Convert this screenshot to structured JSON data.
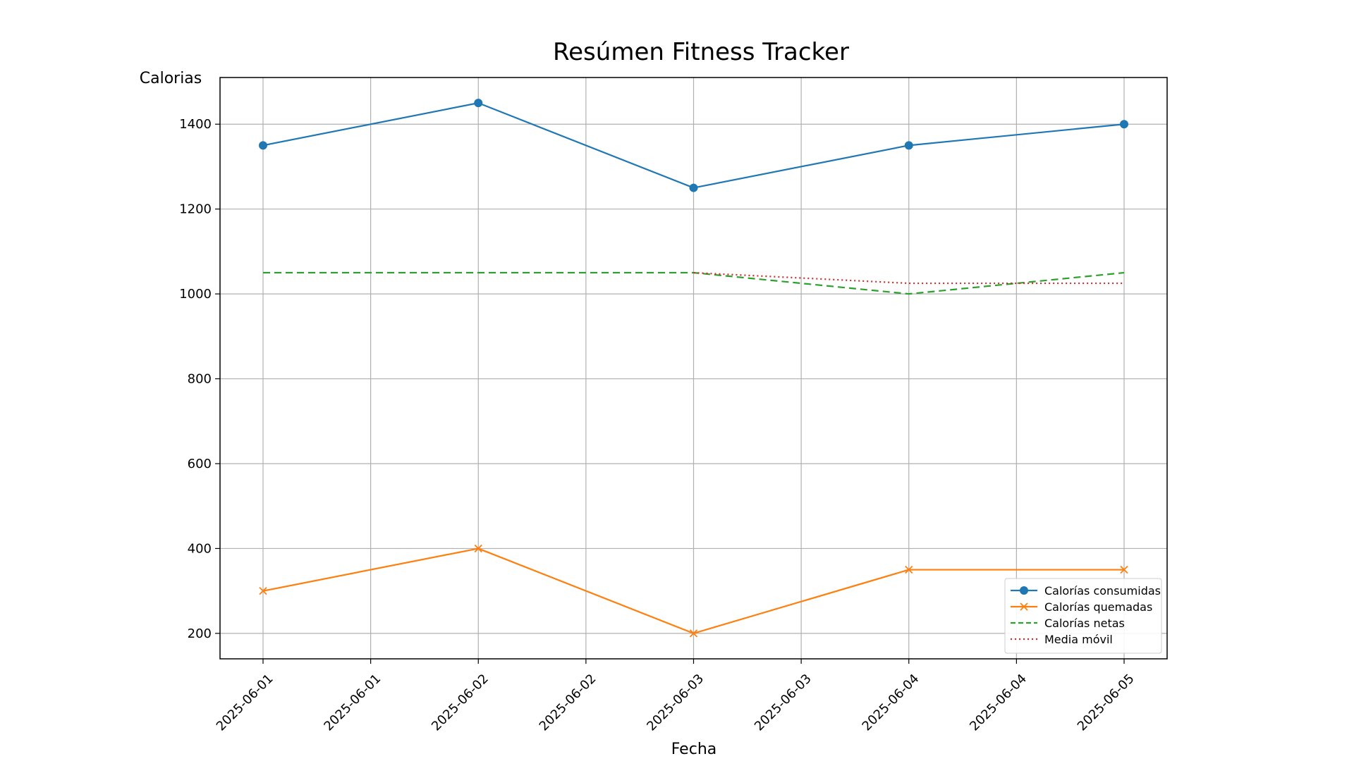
{
  "chart_data": {
    "type": "line",
    "title": "Resúmen Fitness Tracker",
    "xlabel": "Fecha",
    "ylabel": "Calorias",
    "x": [
      "2025-06-01",
      "2025-06-02",
      "2025-06-03",
      "2025-06-04",
      "2025-06-05"
    ],
    "x_tick_labels": [
      "2025-06-01",
      "2025-06-01",
      "2025-06-02",
      "2025-06-02",
      "2025-06-03",
      "2025-06-03",
      "2025-06-04",
      "2025-06-04",
      "2025-06-05"
    ],
    "y_ticks": [
      200,
      400,
      600,
      800,
      1000,
      1200,
      1400
    ],
    "ylim": [
      140,
      1510
    ],
    "grid": true,
    "legend_position": "lower-right",
    "series": [
      {
        "name": "Calorías consumidas",
        "color": "#1f77b4",
        "style": "solid",
        "marker": "circle",
        "values": [
          1350,
          1450,
          1250,
          1350,
          1400
        ]
      },
      {
        "name": "Calorías quemadas",
        "color": "#ff7f0e",
        "style": "solid",
        "marker": "x",
        "values": [
          300,
          400,
          200,
          350,
          350
        ]
      },
      {
        "name": "Calorías netas",
        "color": "#2ca02c",
        "style": "dashed",
        "marker": "none",
        "values": [
          1050,
          1050,
          1050,
          1000,
          1050
        ]
      },
      {
        "name": "Media móvil",
        "color": "#d62728",
        "style": "dotted",
        "marker": "none",
        "values": [
          null,
          null,
          1050,
          1025,
          1025
        ]
      }
    ]
  }
}
